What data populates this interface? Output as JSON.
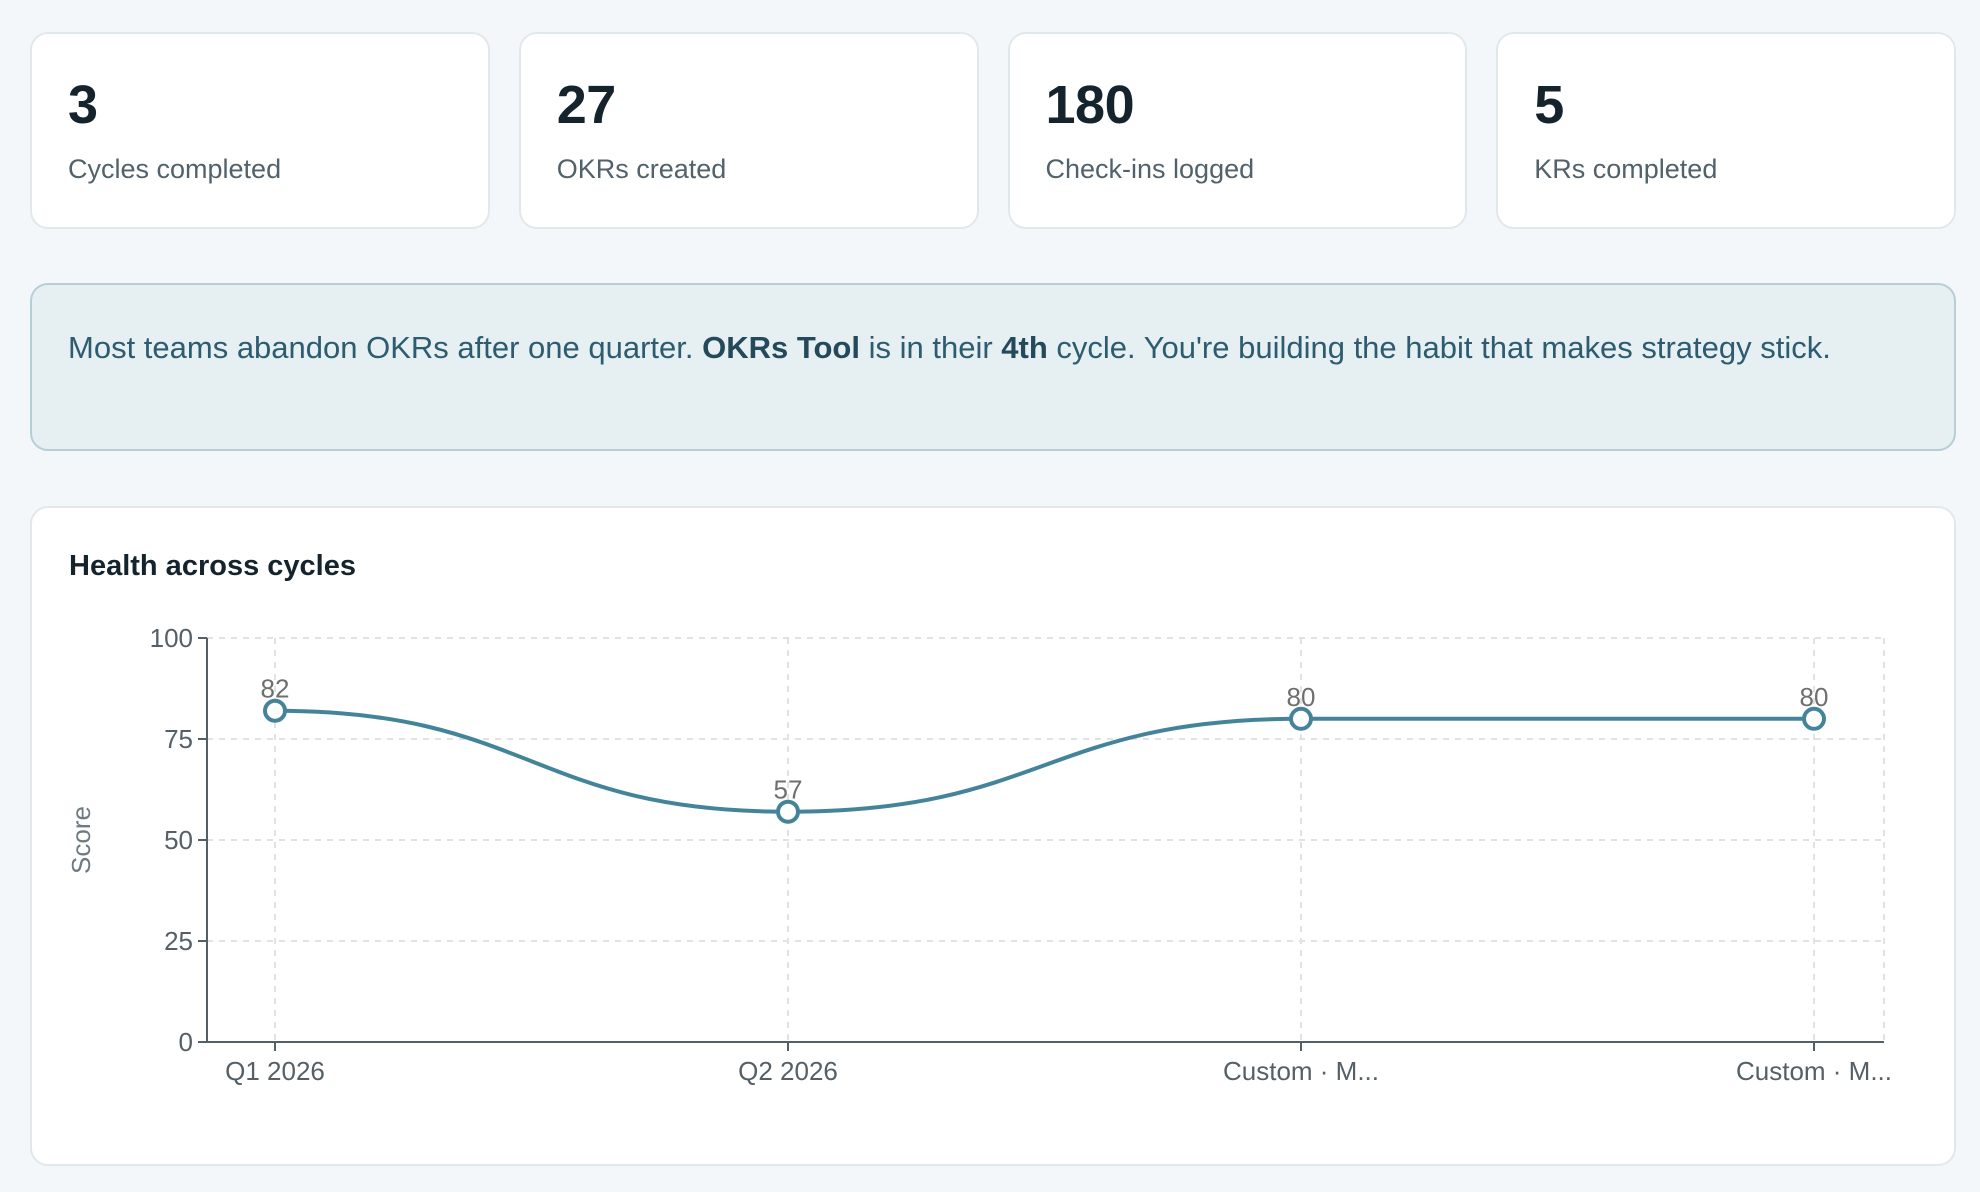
{
  "stats": [
    {
      "value": "3",
      "label": "Cycles completed"
    },
    {
      "value": "27",
      "label": "OKRs created"
    },
    {
      "value": "180",
      "label": "Check-ins logged"
    },
    {
      "value": "5",
      "label": "KRs completed"
    }
  ],
  "banner": {
    "part1": "Most teams abandon OKRs after one quarter. ",
    "team_name": "OKRs Tool",
    "part2": " is in their ",
    "cycle_ordinal": "4th",
    "part3": " cycle. You're building the habit that makes strategy stick."
  },
  "chart": {
    "title": "Health across cycles"
  },
  "colors": {
    "line": "#44849b",
    "banner_bg": "#e6eff2",
    "banner_text": "#2d5c70"
  },
  "chart_data": {
    "type": "line",
    "title": "Health across cycles",
    "xlabel": "",
    "ylabel": "Score",
    "ylim": [
      0,
      100
    ],
    "yticks": [
      0,
      25,
      50,
      75,
      100
    ],
    "categories": [
      "Q1 2026",
      "Q2 2026",
      "Custom · M...",
      "Custom · M..."
    ],
    "values": [
      82,
      57,
      80,
      80
    ],
    "grid": true,
    "curve": "smooth"
  }
}
